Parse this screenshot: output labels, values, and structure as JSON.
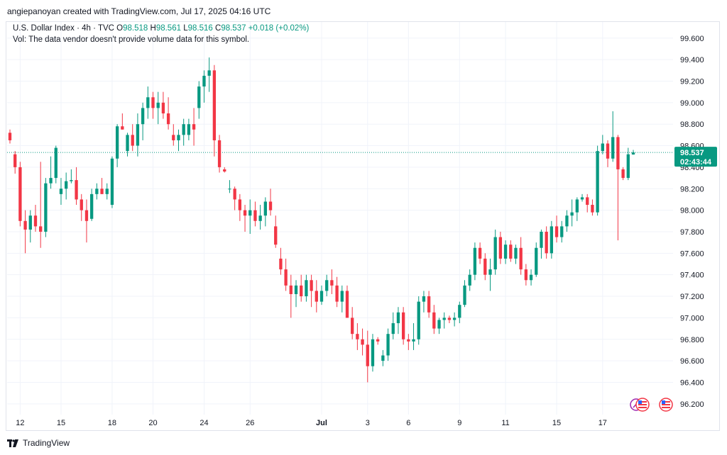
{
  "credit": "angiepanoyan created with TradingView.com, Jul 17, 2025 04:16 UTC",
  "legend": {
    "symbol": "U.S. Dollar Index · 4h · TVC",
    "o_label": "O",
    "o_value": "98.518",
    "h_label": "H",
    "h_value": "98.561",
    "l_label": "L",
    "l_value": "98.516",
    "c_label": "C",
    "c_value": "98.537",
    "change": "+0.018 (+0.02%)",
    "volume_note": "Vol: The data vendor doesn't provide volume data for this symbol."
  },
  "footer_brand": "TradingView",
  "price_box": {
    "price": "98.537",
    "countdown": "02:43:44",
    "value": 98.537,
    "color": "#089981"
  },
  "colors": {
    "up": "#089981",
    "down": "#f23645",
    "grid": "#f0f3fa"
  },
  "chart_data": {
    "type": "candlestick",
    "ylim": [
      96.1,
      99.75
    ],
    "y_ticks": [
      "96.200",
      "96.400",
      "96.600",
      "96.800",
      "97.000",
      "97.200",
      "97.400",
      "97.600",
      "97.800",
      "98.000",
      "98.200",
      "98.400",
      "98.600",
      "98.800",
      "99.000",
      "99.200",
      "99.400",
      "99.600"
    ],
    "x_ticks": [
      {
        "label": "12",
        "index": 2
      },
      {
        "label": "15",
        "index": 10
      },
      {
        "label": "18",
        "index": 20
      },
      {
        "label": "20",
        "index": 28
      },
      {
        "label": "24",
        "index": 38
      },
      {
        "label": "26",
        "index": 47
      },
      {
        "label": "Jul",
        "index": 61,
        "bold": true
      },
      {
        "label": "3",
        "index": 70
      },
      {
        "label": "6",
        "index": 78
      },
      {
        "label": "9",
        "index": 88
      },
      {
        "label": "11",
        "index": 97
      },
      {
        "label": "15",
        "index": 107
      },
      {
        "label": "17",
        "index": 116
      }
    ],
    "candles": [
      [
        98.72,
        98.75,
        98.62,
        98.65
      ],
      [
        98.52,
        98.55,
        98.34,
        98.4
      ],
      [
        98.4,
        98.45,
        97.85,
        97.9
      ],
      [
        97.9,
        98.0,
        97.6,
        97.82
      ],
      [
        97.82,
        98.0,
        97.7,
        97.95
      ],
      [
        97.95,
        98.05,
        97.8,
        97.85
      ],
      [
        97.85,
        98.45,
        97.65,
        97.8
      ],
      [
        97.8,
        98.3,
        97.75,
        98.25
      ],
      [
        98.25,
        98.5,
        98.2,
        98.3
      ],
      [
        98.3,
        98.6,
        98.25,
        98.58
      ],
      [
        98.15,
        98.3,
        98.05,
        98.2
      ],
      [
        98.2,
        98.35,
        98.1,
        98.27
      ],
      [
        98.27,
        98.38,
        98.25,
        98.28
      ],
      [
        98.28,
        98.4,
        98.05,
        98.1
      ],
      [
        98.1,
        98.15,
        97.9,
        98.0
      ],
      [
        98.0,
        98.1,
        97.7,
        97.9
      ],
      [
        97.92,
        98.2,
        97.9,
        98.15
      ],
      [
        98.15,
        98.25,
        98.1,
        98.2
      ],
      [
        98.2,
        98.3,
        98.15,
        98.15
      ],
      [
        98.15,
        98.25,
        98.1,
        98.2
      ],
      [
        98.05,
        98.5,
        98.02,
        98.48
      ],
      [
        98.48,
        98.8,
        98.4,
        98.78
      ],
      [
        98.78,
        98.9,
        98.75,
        98.75
      ],
      [
        98.55,
        98.72,
        98.5,
        98.7
      ],
      [
        98.7,
        98.8,
        98.55,
        98.6
      ],
      [
        98.6,
        98.9,
        98.5,
        98.8
      ],
      [
        98.8,
        99.0,
        98.65,
        98.95
      ],
      [
        98.95,
        99.15,
        98.85,
        99.05
      ],
      [
        99.05,
        99.1,
        98.85,
        98.95
      ],
      [
        98.95,
        99.1,
        98.8,
        99.0
      ],
      [
        99.0,
        99.1,
        98.85,
        98.9
      ],
      [
        98.9,
        99.05,
        98.75,
        98.8
      ],
      [
        98.7,
        98.8,
        98.6,
        98.65
      ],
      [
        98.65,
        98.75,
        98.55,
        98.7
      ],
      [
        98.7,
        98.85,
        98.6,
        98.8
      ],
      [
        98.7,
        98.85,
        98.65,
        98.8
      ],
      [
        98.8,
        98.95,
        98.6,
        98.75
      ],
      [
        98.95,
        99.2,
        98.85,
        99.15
      ],
      [
        99.15,
        99.3,
        99.0,
        99.25
      ],
      [
        99.25,
        99.42,
        99.1,
        99.3
      ],
      [
        99.3,
        99.35,
        98.5,
        98.65
      ],
      [
        98.65,
        98.7,
        98.35,
        98.4
      ],
      [
        98.38,
        98.4,
        98.35,
        98.36
      ],
      [
        98.2,
        98.28,
        98.16,
        98.2
      ],
      [
        98.2,
        98.22,
        98.0,
        98.1
      ],
      [
        98.1,
        98.15,
        97.9,
        98.0
      ],
      [
        98.0,
        98.05,
        97.8,
        97.95
      ],
      [
        97.95,
        98.1,
        97.78,
        98.0
      ],
      [
        98.0,
        98.08,
        97.85,
        97.9
      ],
      [
        97.9,
        98.05,
        97.82,
        97.95
      ],
      [
        97.95,
        98.12,
        97.85,
        98.08
      ],
      [
        98.08,
        98.2,
        97.95,
        98.0
      ],
      [
        97.85,
        97.95,
        97.65,
        97.68
      ],
      [
        97.55,
        97.65,
        97.4,
        97.45
      ],
      [
        97.45,
        97.55,
        97.25,
        97.3
      ],
      [
        97.3,
        97.4,
        97.0,
        97.22
      ],
      [
        97.22,
        97.35,
        97.1,
        97.3
      ],
      [
        97.3,
        97.4,
        97.15,
        97.2
      ],
      [
        97.2,
        97.4,
        97.15,
        97.35
      ],
      [
        97.35,
        97.4,
        97.1,
        97.25
      ],
      [
        97.25,
        97.35,
        97.05,
        97.15
      ],
      [
        97.15,
        97.3,
        97.12,
        97.25
      ],
      [
        97.25,
        97.4,
        97.2,
        97.35
      ],
      [
        97.35,
        97.45,
        97.22,
        97.3
      ],
      [
        97.3,
        97.38,
        97.1,
        97.15
      ],
      [
        97.15,
        97.3,
        97.05,
        97.25
      ],
      [
        97.25,
        97.3,
        97.0,
        97.0
      ],
      [
        97.0,
        97.1,
        96.8,
        96.85
      ],
      [
        96.85,
        96.95,
        96.7,
        96.8
      ],
      [
        96.8,
        96.9,
        96.65,
        96.75
      ],
      [
        96.75,
        96.88,
        96.4,
        96.55
      ],
      [
        96.55,
        96.85,
        96.5,
        96.8
      ],
      [
        96.8,
        96.82,
        96.75,
        96.78
      ],
      [
        96.6,
        96.7,
        96.55,
        96.65
      ],
      [
        96.65,
        96.9,
        96.6,
        96.85
      ],
      [
        96.85,
        97.05,
        96.8,
        96.95
      ],
      [
        96.95,
        97.1,
        96.85,
        97.05
      ],
      [
        97.05,
        97.1,
        96.75,
        96.8
      ],
      [
        96.8,
        96.85,
        96.7,
        96.78
      ],
      [
        96.78,
        96.95,
        96.7,
        96.8
      ],
      [
        96.8,
        97.2,
        96.75,
        97.15
      ],
      [
        97.15,
        97.25,
        97.05,
        97.2
      ],
      [
        97.2,
        97.25,
        97.0,
        97.05
      ],
      [
        97.05,
        97.12,
        96.85,
        96.9
      ],
      [
        96.9,
        97.0,
        96.85,
        96.98
      ],
      [
        96.98,
        97.05,
        96.9,
        97.0
      ],
      [
        97.0,
        97.02,
        96.95,
        96.98
      ],
      [
        96.98,
        97.05,
        96.92,
        97.0
      ],
      [
        97.0,
        97.15,
        96.95,
        97.12
      ],
      [
        97.12,
        97.35,
        97.1,
        97.3
      ],
      [
        97.3,
        97.45,
        97.25,
        97.4
      ],
      [
        97.4,
        97.7,
        97.35,
        97.65
      ],
      [
        97.65,
        97.7,
        97.5,
        97.55
      ],
      [
        97.55,
        97.6,
        97.35,
        97.4
      ],
      [
        97.4,
        97.55,
        97.25,
        97.45
      ],
      [
        97.45,
        97.82,
        97.4,
        97.75
      ],
      [
        97.75,
        97.8,
        97.5,
        97.55
      ],
      [
        97.55,
        97.72,
        97.5,
        97.68
      ],
      [
        97.68,
        97.72,
        97.52,
        97.55
      ],
      [
        97.55,
        97.68,
        97.5,
        97.65
      ],
      [
        97.65,
        97.75,
        97.4,
        97.45
      ],
      [
        97.45,
        97.5,
        97.3,
        97.35
      ],
      [
        97.35,
        97.45,
        97.3,
        97.4
      ],
      [
        97.4,
        97.7,
        97.38,
        97.65
      ],
      [
        97.65,
        97.82,
        97.55,
        97.8
      ],
      [
        97.8,
        97.85,
        97.55,
        97.6
      ],
      [
        97.6,
        97.9,
        97.55,
        97.85
      ],
      [
        97.85,
        97.95,
        97.7,
        97.75
      ],
      [
        97.75,
        97.9,
        97.7,
        97.85
      ],
      [
        97.85,
        98.0,
        97.8,
        97.95
      ],
      [
        97.95,
        98.1,
        97.85,
        97.98
      ],
      [
        97.98,
        98.12,
        97.9,
        98.1
      ],
      [
        98.1,
        98.15,
        98.08,
        98.12
      ],
      [
        98.12,
        98.15,
        97.98,
        98.05
      ],
      [
        98.05,
        98.1,
        97.95,
        97.98
      ],
      [
        97.98,
        98.6,
        97.95,
        98.55
      ],
      [
        98.55,
        98.7,
        98.52,
        98.62
      ],
      [
        98.62,
        98.65,
        98.4,
        98.48
      ],
      [
        98.48,
        98.92,
        98.45,
        98.68
      ],
      [
        98.68,
        98.7,
        97.72,
        98.38
      ],
      [
        98.38,
        98.4,
        98.28,
        98.3
      ],
      [
        98.3,
        98.58,
        98.28,
        98.52
      ],
      [
        98.518,
        98.561,
        98.516,
        98.537
      ]
    ]
  }
}
